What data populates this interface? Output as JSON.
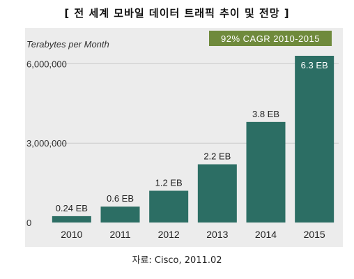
{
  "title": "[ 전 세계 모바일 데이터 트래픽 추이 및 전망 ]",
  "source": "자료: Cisco, 2011.02",
  "colors": {
    "bar": "#2c6e64",
    "badge_bg": "#6f8a3c",
    "panel": "#ececec",
    "grid": "#c9c9c9"
  },
  "chart_data": {
    "type": "bar",
    "title": "",
    "ylabel": "Terabytes per Month",
    "xlabel": "",
    "categories": [
      "2010",
      "2011",
      "2012",
      "2013",
      "2014",
      "2015"
    ],
    "values": [
      240000,
      600000,
      1200000,
      2200000,
      3800000,
      6300000
    ],
    "data_labels": [
      "0.24 EB",
      "0.6 EB",
      "1.2 EB",
      "2.2 EB",
      "3.8 EB",
      "6.3 EB"
    ],
    "yticks": [
      0,
      3000000,
      6000000
    ],
    "ytick_labels": [
      "0",
      "3,000,000",
      "6,000,000"
    ],
    "ylim": [
      0,
      6300000
    ],
    "annotation": "92% CAGR 2010-2015",
    "grid": true,
    "legend": "none"
  }
}
